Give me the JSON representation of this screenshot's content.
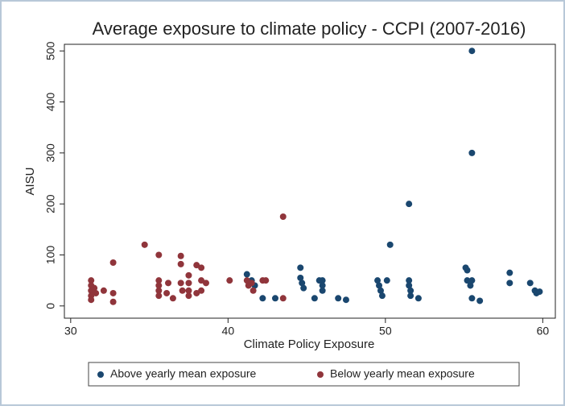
{
  "chart_data": {
    "type": "scatter",
    "title": "Average exposure to climate policy - CCPI (2007-2016)",
    "x_label": "Climate Policy Exposure",
    "y_label": "AISU",
    "xlim": [
      29.6,
      60.8
    ],
    "ylim": [
      -24,
      513
    ],
    "xticks": [
      30,
      40,
      50,
      60
    ],
    "yticks": [
      0,
      100,
      200,
      300,
      400,
      500
    ],
    "grid": false,
    "legend": "bottom",
    "series": [
      {
        "name": "Above yearly mean exposure",
        "color": "#1a476f",
        "x": [
          41.2,
          41.5,
          41.7,
          42.2,
          43.0,
          44.6,
          44.6,
          44.7,
          44.8,
          45.5,
          45.8,
          46.0,
          46.0,
          46.0,
          47.0,
          47.5,
          49.5,
          49.6,
          49.7,
          49.8,
          50.1,
          50.3,
          51.5,
          51.5,
          51.5,
          51.6,
          51.6,
          52.1,
          55.1,
          55.2,
          55.2,
          55.4,
          55.5,
          55.5,
          55.5,
          55.5,
          56.0,
          57.9,
          57.9,
          59.2,
          59.5,
          59.6,
          59.8
        ],
        "values": [
          62,
          50,
          40,
          15,
          15,
          75,
          55,
          45,
          35,
          15,
          50,
          50,
          40,
          30,
          15,
          12,
          50,
          40,
          30,
          20,
          50,
          120,
          200,
          50,
          40,
          30,
          20,
          15,
          75,
          70,
          50,
          40,
          500,
          300,
          50,
          15,
          10,
          65,
          45,
          45,
          30,
          25,
          28
        ]
      },
      {
        "name": "Below yearly mean exposure",
        "color": "#90353b",
        "x": [
          31.3,
          31.3,
          31.3,
          31.3,
          31.3,
          31.5,
          31.6,
          32.1,
          32.7,
          32.7,
          32.7,
          34.7,
          35.6,
          35.6,
          35.6,
          35.6,
          35.6,
          36.2,
          36.1,
          36.5,
          37.0,
          37.0,
          37.0,
          37.1,
          37.5,
          37.5,
          37.5,
          37.5,
          38.0,
          38.0,
          38.3,
          38.3,
          38.3,
          38.6,
          40.1,
          41.2,
          41.3,
          41.5,
          41.6,
          42.2,
          42.4,
          43.5,
          43.5
        ],
        "values": [
          50,
          40,
          30,
          20,
          12,
          35,
          25,
          30,
          85,
          25,
          8,
          120,
          100,
          50,
          40,
          30,
          20,
          45,
          25,
          15,
          98,
          82,
          45,
          30,
          60,
          45,
          30,
          20,
          80,
          25,
          75,
          50,
          30,
          45,
          50,
          50,
          40,
          45,
          30,
          50,
          50,
          175,
          15
        ]
      }
    ]
  }
}
